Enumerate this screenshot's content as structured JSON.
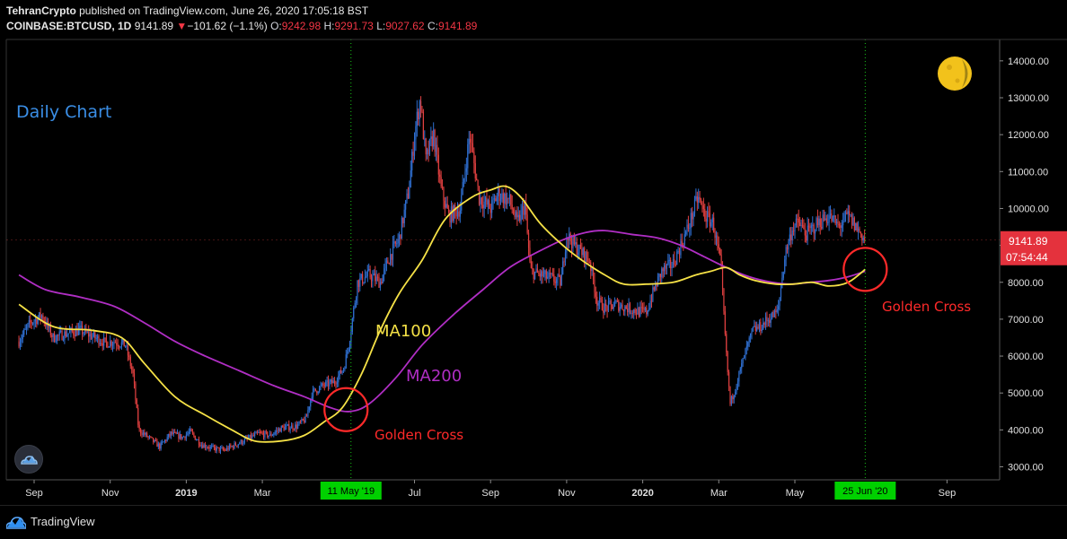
{
  "header": {
    "author": "TehranCrypto",
    "published": " published on TradingView.com, June 26, 2020 17:05:18 BST",
    "symbol": "COINBASE:BTCUSD, 1D",
    "last": "9141.89",
    "change_arrow": "▼",
    "change": "−101.62 (−1.1%)",
    "o_label": "O:",
    "o_val": "9242.98",
    "h_label": "H:",
    "h_val": "9291.73",
    "l_label": "L:",
    "l_val": "9027.62",
    "c_label": "C:",
    "c_val": "9141.89"
  },
  "footer": {
    "brand": "TradingView"
  },
  "colors": {
    "up": "#2f6fd1",
    "down": "#e04040",
    "ma100": "#f5e146",
    "ma200": "#b02ec4",
    "annotation": "#ff2a2a",
    "label_bg": "#00d000"
  },
  "chart_data": {
    "type": "line",
    "title": "Daily Chart",
    "ylim": [
      2750,
      14500
    ],
    "y_ticks": [
      3000,
      4000,
      5000,
      6000,
      7000,
      8000,
      9000,
      10000,
      11000,
      12000,
      13000,
      14000
    ],
    "y_tick_labels": [
      "3000.00",
      "4000.00",
      "5000.00",
      "6000.00",
      "7000.00",
      "8000.00",
      "9000.00",
      "10000.00",
      "11000.00",
      "12000.00",
      "13000.00",
      "14000.00"
    ],
    "x_ticks": [
      {
        "month": 0,
        "label": "Sep"
      },
      {
        "month": 2,
        "label": "Nov"
      },
      {
        "month": 4,
        "label": "2019"
      },
      {
        "month": 6,
        "label": "Mar"
      },
      {
        "month": 10,
        "label": "Jul"
      },
      {
        "month": 12,
        "label": "Sep"
      },
      {
        "month": 14,
        "label": "Nov"
      },
      {
        "month": 16,
        "label": "2020"
      },
      {
        "month": 18,
        "label": "Mar"
      },
      {
        "month": 20,
        "label": "May"
      },
      {
        "month": 24,
        "label": "Sep"
      }
    ],
    "price_path": [
      [
        -0.4,
        6400
      ],
      [
        -0.1,
        6900
      ],
      [
        0.2,
        7100
      ],
      [
        0.5,
        6500
      ],
      [
        0.8,
        6600
      ],
      [
        1.2,
        6700
      ],
      [
        1.6,
        6500
      ],
      [
        1.9,
        6350
      ],
      [
        2.1,
        6400
      ],
      [
        2.4,
        6300
      ],
      [
        2.6,
        5500
      ],
      [
        2.75,
        4000
      ],
      [
        3.0,
        3800
      ],
      [
        3.3,
        3550
      ],
      [
        3.6,
        3900
      ],
      [
        3.9,
        3800
      ],
      [
        4.1,
        3950
      ],
      [
        4.4,
        3600
      ],
      [
        4.7,
        3500
      ],
      [
        5.0,
        3450
      ],
      [
        5.3,
        3600
      ],
      [
        5.6,
        3750
      ],
      [
        5.9,
        3900
      ],
      [
        6.2,
        3850
      ],
      [
        6.5,
        4050
      ],
      [
        6.9,
        4100
      ],
      [
        7.15,
        4300
      ],
      [
        7.3,
        5000
      ],
      [
        7.6,
        5200
      ],
      [
        7.9,
        5300
      ],
      [
        8.15,
        5700
      ],
      [
        8.3,
        6500
      ],
      [
        8.5,
        8000
      ],
      [
        8.8,
        8200
      ],
      [
        9.1,
        8000
      ],
      [
        9.35,
        8700
      ],
      [
        9.6,
        9200
      ],
      [
        9.85,
        10500
      ],
      [
        10.0,
        12000
      ],
      [
        10.15,
        13000
      ],
      [
        10.3,
        11300
      ],
      [
        10.5,
        12000
      ],
      [
        10.7,
        10500
      ],
      [
        10.9,
        9800
      ],
      [
        11.2,
        10000
      ],
      [
        11.45,
        12000
      ],
      [
        11.7,
        10300
      ],
      [
        12.0,
        10000
      ],
      [
        12.2,
        10400
      ],
      [
        12.5,
        10200
      ],
      [
        12.7,
        9600
      ],
      [
        12.9,
        10100
      ],
      [
        13.05,
        8300
      ],
      [
        13.3,
        8200
      ],
      [
        13.6,
        8100
      ],
      [
        13.85,
        8000
      ],
      [
        14.0,
        9300
      ],
      [
        14.2,
        9000
      ],
      [
        14.4,
        8800
      ],
      [
        14.6,
        8600
      ],
      [
        14.8,
        7500
      ],
      [
        15.0,
        7300
      ],
      [
        15.3,
        7400
      ],
      [
        15.6,
        7300
      ],
      [
        15.9,
        7200
      ],
      [
        16.1,
        7200
      ],
      [
        16.3,
        7800
      ],
      [
        16.5,
        8300
      ],
      [
        16.8,
        8500
      ],
      [
        17.0,
        9000
      ],
      [
        17.2,
        9500
      ],
      [
        17.45,
        10300
      ],
      [
        17.65,
        9800
      ],
      [
        17.85,
        9600
      ],
      [
        18.05,
        8500
      ],
      [
        18.2,
        6000
      ],
      [
        18.3,
        4700
      ],
      [
        18.45,
        5200
      ],
      [
        18.7,
        6100
      ],
      [
        18.9,
        6700
      ],
      [
        19.1,
        6800
      ],
      [
        19.3,
        7000
      ],
      [
        19.55,
        7200
      ],
      [
        19.75,
        8800
      ],
      [
        19.95,
        9500
      ],
      [
        20.1,
        9600
      ],
      [
        20.3,
        9300
      ],
      [
        20.6,
        9600
      ],
      [
        20.9,
        9800
      ],
      [
        21.15,
        9500
      ],
      [
        21.4,
        9800
      ],
      [
        21.6,
        9500
      ],
      [
        21.75,
        9300
      ],
      [
        21.85,
        9141.89
      ]
    ],
    "series": [
      {
        "name": "MA100",
        "points": [
          [
            -0.4,
            7400
          ],
          [
            0.5,
            6800
          ],
          [
            1.5,
            6700
          ],
          [
            2.3,
            6500
          ],
          [
            2.9,
            5800
          ],
          [
            3.7,
            4900
          ],
          [
            4.5,
            4400
          ],
          [
            5.2,
            4000
          ],
          [
            5.8,
            3700
          ],
          [
            6.5,
            3700
          ],
          [
            7.1,
            3850
          ],
          [
            7.6,
            4200
          ],
          [
            8.1,
            4600
          ],
          [
            8.6,
            5500
          ],
          [
            9.1,
            6700
          ],
          [
            9.6,
            7700
          ],
          [
            10.2,
            8600
          ],
          [
            10.8,
            9700
          ],
          [
            11.5,
            10300
          ],
          [
            12.0,
            10500
          ],
          [
            12.4,
            10600
          ],
          [
            12.8,
            10300
          ],
          [
            13.3,
            9600
          ],
          [
            13.9,
            9000
          ],
          [
            14.4,
            8600
          ],
          [
            15.0,
            8200
          ],
          [
            15.5,
            7950
          ],
          [
            16.1,
            7950
          ],
          [
            16.8,
            8000
          ],
          [
            17.4,
            8200
          ],
          [
            17.8,
            8300
          ],
          [
            18.2,
            8400
          ],
          [
            18.55,
            8200
          ],
          [
            18.95,
            8050
          ],
          [
            19.5,
            7950
          ],
          [
            19.95,
            7950
          ],
          [
            20.45,
            8000
          ],
          [
            20.9,
            7900
          ],
          [
            21.4,
            8000
          ],
          [
            21.85,
            8350
          ]
        ]
      },
      {
        "name": "MA200",
        "points": [
          [
            -0.4,
            8200
          ],
          [
            0.3,
            7800
          ],
          [
            1.2,
            7600
          ],
          [
            2.1,
            7350
          ],
          [
            2.9,
            6900
          ],
          [
            3.7,
            6400
          ],
          [
            4.5,
            6000
          ],
          [
            5.4,
            5600
          ],
          [
            6.3,
            5200
          ],
          [
            7.1,
            4900
          ],
          [
            7.8,
            4600
          ],
          [
            8.3,
            4500
          ],
          [
            8.8,
            4700
          ],
          [
            9.5,
            5400
          ],
          [
            10.2,
            6300
          ],
          [
            11.0,
            7100
          ],
          [
            11.8,
            7800
          ],
          [
            12.5,
            8400
          ],
          [
            13.2,
            8800
          ],
          [
            13.9,
            9150
          ],
          [
            14.5,
            9350
          ],
          [
            15.0,
            9400
          ],
          [
            15.7,
            9300
          ],
          [
            16.4,
            9200
          ],
          [
            17.0,
            9000
          ],
          [
            17.6,
            8700
          ],
          [
            18.2,
            8400
          ],
          [
            18.8,
            8150
          ],
          [
            19.4,
            8000
          ],
          [
            19.9,
            7950
          ],
          [
            20.4,
            8000
          ],
          [
            20.9,
            8050
          ],
          [
            21.4,
            8150
          ],
          [
            21.85,
            8300
          ]
        ]
      }
    ],
    "annotations": {
      "daily_chart": "Daily Chart",
      "ma100_label": "MA100",
      "ma200_label": "MA200",
      "golden_cross_1": {
        "label": "Golden Cross",
        "month": 8.2,
        "price": 4550
      },
      "golden_cross_2": {
        "label": "Golden Cross",
        "month": 21.85,
        "price": 8350
      }
    },
    "markers": {
      "date1": {
        "label": "11 May '19",
        "month": 8.33
      },
      "date2": {
        "label": "25 Jun '20",
        "month": 21.85
      }
    },
    "price_label": {
      "value": 9141.89,
      "text": "9141.89",
      "countdown": "07:54:44"
    }
  }
}
